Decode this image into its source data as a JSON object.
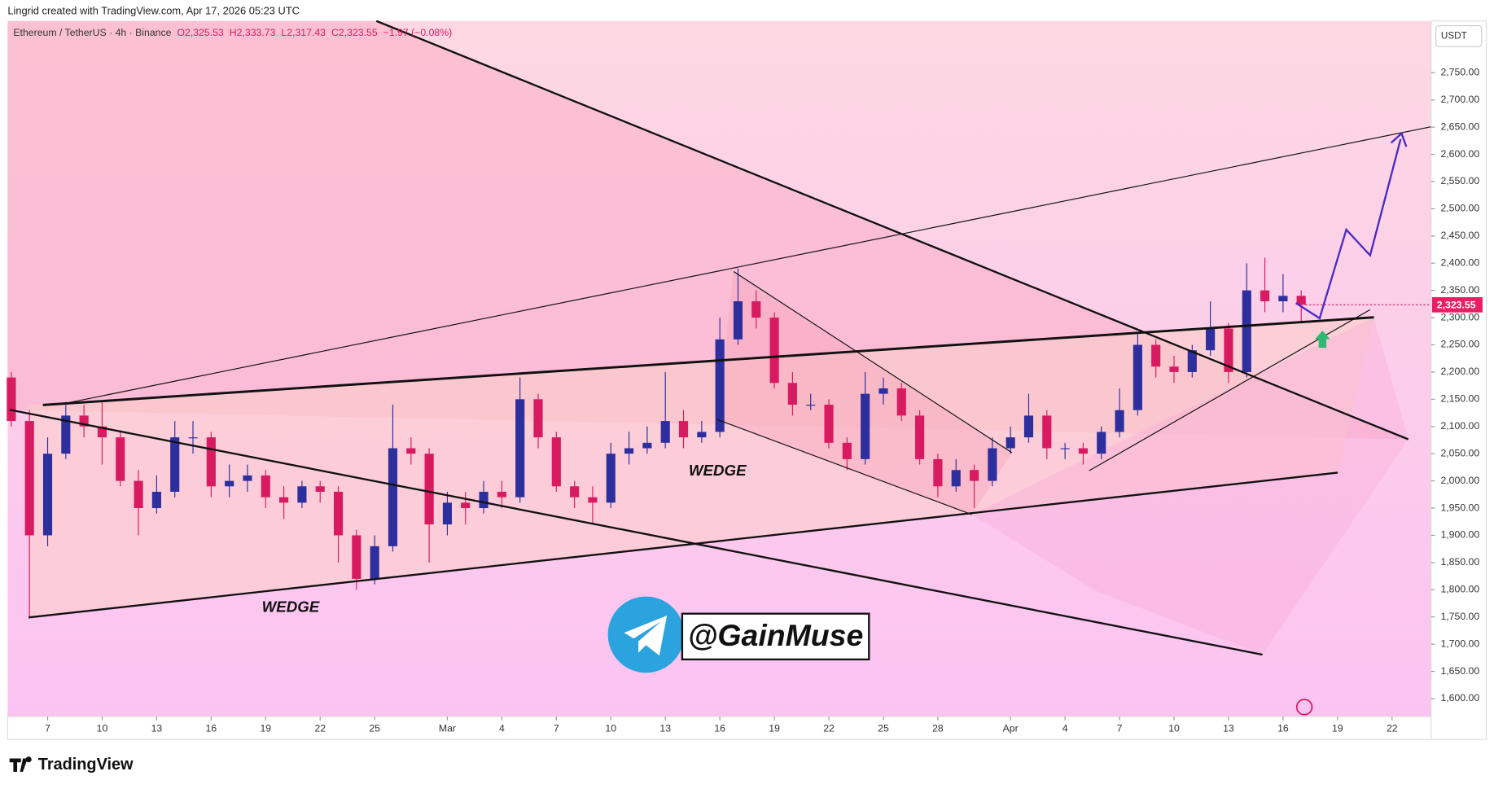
{
  "header": {
    "credit": "Lingrid created with TradingView.com, Apr 17, 2026 05:23 UTC",
    "brand": "TradingView"
  },
  "chart_data": {
    "type": "candlestick",
    "symbol": "Ethereum / TetherUS · 4h · Binance",
    "ohlc_legend": [
      "O2,325.53",
      "H2,333.73",
      "L2,317.43",
      "C2,323.55",
      "−1.97 (−0.08%)"
    ],
    "currency": "USDT",
    "annotations": [
      "WEDGE",
      "WEDGE",
      "@GainMuse"
    ],
    "x": [
      "2026-02-05",
      "2026-02-06",
      "2026-02-07",
      "2026-02-08",
      "2026-02-09",
      "2026-02-10",
      "2026-02-11",
      "2026-02-12",
      "2026-02-13",
      "2026-02-14",
      "2026-02-15",
      "2026-02-16",
      "2026-02-17",
      "2026-02-18",
      "2026-02-19",
      "2026-02-20",
      "2026-02-21",
      "2026-02-22",
      "2026-02-23",
      "2026-02-24",
      "2026-02-25",
      "2026-02-26",
      "2026-02-27",
      "2026-02-28",
      "2026-03-01",
      "2026-03-02",
      "2026-03-03",
      "2026-03-04",
      "2026-03-05",
      "2026-03-06",
      "2026-03-07",
      "2026-03-08",
      "2026-03-09",
      "2026-03-10",
      "2026-03-11",
      "2026-03-12",
      "2026-03-13",
      "2026-03-14",
      "2026-03-15",
      "2026-03-16",
      "2026-03-17",
      "2026-03-18",
      "2026-03-19",
      "2026-03-20",
      "2026-03-21",
      "2026-03-22",
      "2026-03-23",
      "2026-03-24",
      "2026-03-25",
      "2026-03-26",
      "2026-03-27",
      "2026-03-28",
      "2026-03-29",
      "2026-03-30",
      "2026-03-31",
      "2026-04-01",
      "2026-04-02",
      "2026-04-03",
      "2026-04-04",
      "2026-04-05",
      "2026-04-06",
      "2026-04-07",
      "2026-04-08",
      "2026-04-09",
      "2026-04-10",
      "2026-04-11",
      "2026-04-12",
      "2026-04-13",
      "2026-04-14",
      "2026-04-15",
      "2026-04-16",
      "2026-04-17"
    ],
    "open": [
      2190,
      2110,
      1900,
      2050,
      2120,
      2100,
      2080,
      2000,
      1950,
      1980,
      2080,
      2080,
      1990,
      2000,
      2010,
      1970,
      1960,
      1990,
      1980,
      1900,
      1820,
      1880,
      2060,
      2050,
      1920,
      1960,
      1950,
      1980,
      1970,
      2150,
      2080,
      1990,
      1970,
      1960,
      2050,
      2060,
      2070,
      2110,
      2080,
      2090,
      2260,
      2330,
      2300,
      2180,
      2140,
      2140,
      2070,
      2040,
      2160,
      2170,
      2120,
      2040,
      1990,
      2020,
      2000,
      2060,
      2080,
      2120,
      2060,
      2060,
      2050,
      2090,
      2130,
      2250,
      2210,
      2200,
      2240,
      2280,
      2200,
      2350,
      2330,
      2340
    ],
    "high": [
      2200,
      2130,
      2080,
      2145,
      2140,
      2145,
      2090,
      2020,
      2010,
      2110,
      2110,
      2090,
      2030,
      2030,
      2020,
      1990,
      2000,
      2000,
      1990,
      1910,
      1900,
      2140,
      2080,
      2060,
      1980,
      1980,
      2000,
      2000,
      2190,
      2160,
      2090,
      2000,
      1990,
      2070,
      2090,
      2100,
      2200,
      2130,
      2110,
      2300,
      2390,
      2350,
      2310,
      2200,
      2160,
      2150,
      2080,
      2200,
      2190,
      2180,
      2130,
      2050,
      2040,
      2030,
      2080,
      2100,
      2160,
      2130,
      2070,
      2070,
      2100,
      2170,
      2270,
      2260,
      2230,
      2250,
      2330,
      2290,
      2400,
      2410,
      2380,
      2350
    ],
    "low": [
      2100,
      1750,
      1880,
      2040,
      2080,
      2030,
      1990,
      1900,
      1940,
      1970,
      2050,
      1970,
      1970,
      1980,
      1950,
      1930,
      1950,
      1960,
      1850,
      1800,
      1810,
      1870,
      2030,
      1850,
      1900,
      1920,
      1940,
      1950,
      1960,
      2060,
      1980,
      1950,
      1920,
      1950,
      2030,
      2050,
      2060,
      2060,
      2070,
      2080,
      2250,
      2280,
      2170,
      2120,
      2130,
      2060,
      2020,
      2030,
      2140,
      2110,
      2030,
      1970,
      1980,
      1950,
      1990,
      2050,
      2070,
      2040,
      2040,
      2030,
      2040,
      2080,
      2120,
      2190,
      2180,
      2190,
      2230,
      2180,
      2190,
      2310,
      2310,
      2290
    ],
    "close": [
      2110,
      1900,
      2050,
      2120,
      2100,
      2080,
      2000,
      1950,
      1980,
      2080,
      2080,
      1990,
      2000,
      2010,
      1970,
      1960,
      1990,
      1980,
      1900,
      1820,
      1880,
      2060,
      2050,
      1920,
      1960,
      1950,
      1980,
      1970,
      2150,
      2080,
      1990,
      1970,
      1960,
      2050,
      2060,
      2070,
      2110,
      2080,
      2090,
      2260,
      2330,
      2300,
      2180,
      2140,
      2140,
      2070,
      2040,
      2160,
      2170,
      2120,
      2040,
      1990,
      2020,
      2000,
      2060,
      2080,
      2120,
      2060,
      2060,
      2050,
      2090,
      2130,
      2250,
      2210,
      2200,
      2240,
      2280,
      2200,
      2350,
      2330,
      2340,
      2323.55
    ],
    "up_color": "#2e2f9e",
    "down_color": "#d81b60",
    "last_price": {
      "value": 2323.55,
      "label": "2,323.55"
    },
    "ylim": [
      1567,
      2845
    ],
    "yticks": [
      {
        "value": 1600,
        "label": "1,600.00"
      },
      {
        "value": 1650,
        "label": "1,650.00"
      },
      {
        "value": 1700,
        "label": "1,700.00"
      },
      {
        "value": 1750,
        "label": "1,750.00"
      },
      {
        "value": 1800,
        "label": "1,800.00"
      },
      {
        "value": 1850,
        "label": "1,850.00"
      },
      {
        "value": 1900,
        "label": "1,900.00"
      },
      {
        "value": 1950,
        "label": "1,950.00"
      },
      {
        "value": 2000,
        "label": "2,000.00"
      },
      {
        "value": 2050,
        "label": "2,050.00"
      },
      {
        "value": 2100,
        "label": "2,100.00"
      },
      {
        "value": 2150,
        "label": "2,150.00"
      },
      {
        "value": 2200,
        "label": "2,200.00"
      },
      {
        "value": 2250,
        "label": "2,250.00"
      },
      {
        "value": 2300,
        "label": "2,300.00"
      },
      {
        "value": 2350,
        "label": "2,350.00"
      },
      {
        "value": 2400,
        "label": "2,400.00"
      },
      {
        "value": 2450,
        "label": "2,450.00"
      },
      {
        "value": 2500,
        "label": "2,500.00"
      },
      {
        "value": 2550,
        "label": "2,550.00"
      },
      {
        "value": 2600,
        "label": "2,600.00"
      },
      {
        "value": 2650,
        "label": "2,650.00"
      },
      {
        "value": 2700,
        "label": "2,700.00"
      },
      {
        "value": 2750,
        "label": "2,750.00"
      }
    ],
    "xticks": [
      {
        "value": "2026-02-07",
        "label": "7"
      },
      {
        "value": "2026-02-10",
        "label": "10"
      },
      {
        "value": "2026-02-13",
        "label": "13"
      },
      {
        "value": "2026-02-16",
        "label": "16"
      },
      {
        "value": "2026-02-19",
        "label": "19"
      },
      {
        "value": "2026-02-22",
        "label": "22"
      },
      {
        "value": "2026-02-25",
        "label": "25"
      },
      {
        "value": "2026-03-01",
        "label": "Mar"
      },
      {
        "value": "2026-03-04",
        "label": "4"
      },
      {
        "value": "2026-03-07",
        "label": "7"
      },
      {
        "value": "2026-03-10",
        "label": "10"
      },
      {
        "value": "2026-03-13",
        "label": "13"
      },
      {
        "value": "2026-03-16",
        "label": "16"
      },
      {
        "value": "2026-03-19",
        "label": "19"
      },
      {
        "value": "2026-03-22",
        "label": "22"
      },
      {
        "value": "2026-03-25",
        "label": "25"
      },
      {
        "value": "2026-03-28",
        "label": "28"
      },
      {
        "value": "2026-04-01",
        "label": "Apr"
      },
      {
        "value": "2026-04-04",
        "label": "4"
      },
      {
        "value": "2026-04-07",
        "label": "7"
      },
      {
        "value": "2026-04-10",
        "label": "10"
      },
      {
        "value": "2026-04-13",
        "label": "13"
      },
      {
        "value": "2026-04-16",
        "label": "16"
      },
      {
        "value": "2026-04-19",
        "label": "19"
      },
      {
        "value": "2026-04-22",
        "label": "22"
      }
    ],
    "grid": false
  }
}
